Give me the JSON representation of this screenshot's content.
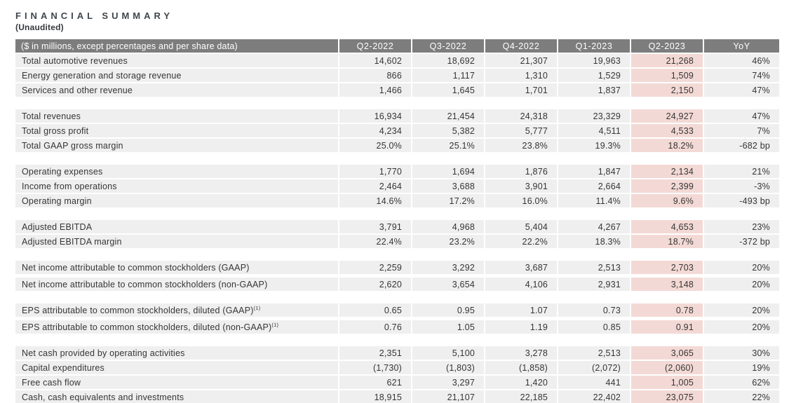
{
  "title": "FINANCIAL SUMMARY",
  "subtitle": "(Unaudited)",
  "colors": {
    "header_bg": "#7d7d7d",
    "header_text": "#ffffff",
    "row_bg": "#f0eff0",
    "highlight_bg": "#f3d9d5",
    "text_color": "#353535"
  },
  "table": {
    "corner_label": "($ in millions, except percentages and per share data)",
    "columns": [
      "Q2-2022",
      "Q3-2022",
      "Q4-2022",
      "Q1-2023",
      "Q2-2023",
      "YoY"
    ],
    "highlight_column": "Q2-2023",
    "groups": [
      {
        "rows": [
          {
            "label": "Total automotive revenues",
            "values": [
              "14,602",
              "18,692",
              "21,307",
              "19,963",
              "21,268",
              "46%"
            ]
          },
          {
            "label": "Energy generation and storage revenue",
            "values": [
              "866",
              "1,117",
              "1,310",
              "1,529",
              "1,509",
              "74%"
            ]
          },
          {
            "label": "Services and other revenue",
            "values": [
              "1,466",
              "1,645",
              "1,701",
              "1,837",
              "2,150",
              "47%"
            ]
          }
        ]
      },
      {
        "rows": [
          {
            "label": "Total revenues",
            "values": [
              "16,934",
              "21,454",
              "24,318",
              "23,329",
              "24,927",
              "47%"
            ]
          },
          {
            "label": "Total gross profit",
            "values": [
              "4,234",
              "5,382",
              "5,777",
              "4,511",
              "4,533",
              "7%"
            ]
          },
          {
            "label": "Total GAAP gross margin",
            "values": [
              "25.0%",
              "25.1%",
              "23.8%",
              "19.3%",
              "18.2%",
              "-682 bp"
            ]
          }
        ]
      },
      {
        "rows": [
          {
            "label": "Operating expenses",
            "values": [
              "1,770",
              "1,694",
              "1,876",
              "1,847",
              "2,134",
              "21%"
            ]
          },
          {
            "label": "Income from operations",
            "values": [
              "2,464",
              "3,688",
              "3,901",
              "2,664",
              "2,399",
              "-3%"
            ]
          },
          {
            "label": "Operating margin",
            "values": [
              "14.6%",
              "17.2%",
              "16.0%",
              "11.4%",
              "9.6%",
              "-493 bp"
            ]
          }
        ]
      },
      {
        "rows": [
          {
            "label": "Adjusted EBITDA",
            "values": [
              "3,791",
              "4,968",
              "5,404",
              "4,267",
              "4,653",
              "23%"
            ]
          },
          {
            "label": "Adjusted EBITDA margin",
            "values": [
              "22.4%",
              "23.2%",
              "22.2%",
              "18.3%",
              "18.7%",
              "-372 bp"
            ]
          }
        ]
      },
      {
        "spread": true,
        "rows": [
          {
            "label": "Net income attributable to common stockholders (GAAP)",
            "values": [
              "2,259",
              "3,292",
              "3,687",
              "2,513",
              "2,703",
              "20%"
            ]
          },
          {
            "label": "Net income attributable to common stockholders (non-GAAP)",
            "values": [
              "2,620",
              "3,654",
              "4,106",
              "2,931",
              "3,148",
              "20%"
            ]
          }
        ]
      },
      {
        "spread": true,
        "rows": [
          {
            "label": "EPS attributable to common stockholders, diluted (GAAP)",
            "sup": "(1)",
            "values": [
              "0.65",
              "0.95",
              "1.07",
              "0.73",
              "0.78",
              "20%"
            ]
          },
          {
            "label": "EPS attributable to common stockholders, diluted (non-GAAP)",
            "sup": "(1)",
            "values": [
              "0.76",
              "1.05",
              "1.19",
              "0.85",
              "0.91",
              "20%"
            ]
          }
        ]
      },
      {
        "rows": [
          {
            "label": "Net cash provided by operating activities",
            "values": [
              "2,351",
              "5,100",
              "3,278",
              "2,513",
              "3,065",
              "30%"
            ]
          },
          {
            "label": "Capital expenditures",
            "values": [
              "(1,730)",
              "(1,803)",
              "(1,858)",
              "(2,072)",
              "(2,060)",
              "19%"
            ]
          },
          {
            "label": "Free cash flow",
            "values": [
              "621",
              "3,297",
              "1,420",
              "441",
              "1,005",
              "62%"
            ]
          },
          {
            "label": "Cash, cash equivalents and investments",
            "values": [
              "18,915",
              "21,107",
              "22,185",
              "22,402",
              "23,075",
              "22%"
            ]
          }
        ]
      }
    ]
  }
}
